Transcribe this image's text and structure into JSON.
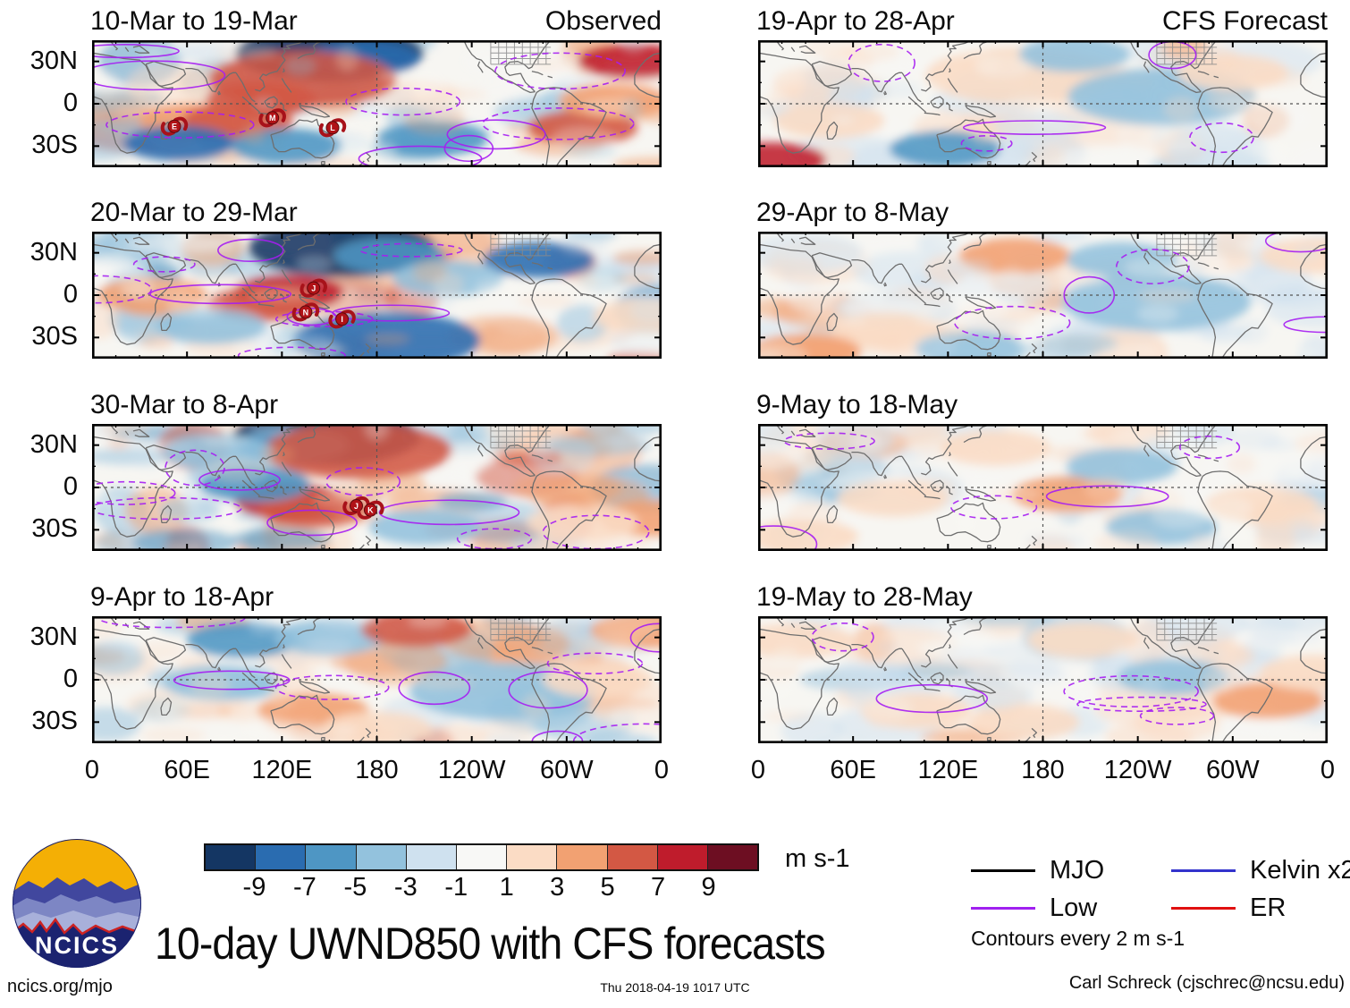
{
  "chart_data": {
    "type": "heatmap",
    "title": "10-day UWND850 with CFS forecasts",
    "units_label": "m s-1",
    "lon_range": [
      0,
      360
    ],
    "lat_range": [
      -45,
      45
    ],
    "x_tick_labels": [
      "0",
      "60E",
      "120E",
      "180",
      "120W",
      "60W",
      "0"
    ],
    "y_tick_labels": [
      "30N",
      "0",
      "30S"
    ],
    "colorbar": {
      "tick_labels": [
        "-9",
        "-7",
        "-5",
        "-3",
        "-1",
        "1",
        "3",
        "5",
        "7",
        "9"
      ],
      "colors": [
        "#143663",
        "#2a6cb0",
        "#4e96c4",
        "#93c2dd",
        "#cfe1ef",
        "#f8f8f6",
        "#fbdcc5",
        "#f2a172",
        "#d35844",
        "#bf1c2c",
        "#6d0e22"
      ]
    },
    "legend": {
      "items": [
        {
          "label": "MJO",
          "color": "#000000"
        },
        {
          "label": "Low",
          "color": "#a020f0"
        },
        {
          "label": "Kelvin x2",
          "color": "#3333cc"
        },
        {
          "label": "ER",
          "color": "#e01010"
        }
      ],
      "note": "Contours every 2 m s-1"
    },
    "panels": [
      {
        "title": "10-Mar to 19-Mar",
        "corner_label": "Observed",
        "amplitude": 1.0,
        "features": [
          {
            "lon": 150,
            "lat": 36,
            "value": -9,
            "size": "large"
          },
          {
            "lon": 172,
            "lat": 32,
            "value": -7,
            "size": "medium"
          },
          {
            "lon": 133,
            "lat": 17,
            "value": 7,
            "size": "large"
          },
          {
            "lon": 107,
            "lat": 3,
            "value": 7,
            "size": "medium"
          },
          {
            "lon": 342,
            "lat": 30,
            "value": 9,
            "size": "medium"
          },
          {
            "lon": 310,
            "lat": -17,
            "value": 7,
            "size": "medium"
          },
          {
            "lon": 65,
            "lat": -12,
            "value": 5,
            "size": "medium"
          },
          {
            "lon": 92,
            "lat": -12,
            "value": 7,
            "size": "medium"
          },
          {
            "lon": 55,
            "lat": -28,
            "value": -7,
            "size": "medium"
          },
          {
            "lon": 123,
            "lat": -30,
            "value": -5,
            "size": "medium"
          },
          {
            "lon": 215,
            "lat": -25,
            "value": -5,
            "size": "medium"
          },
          {
            "lon": 330,
            "lat": 2,
            "value": 5,
            "size": "medium"
          }
        ],
        "cyclones": [
          {
            "letter": "E",
            "lon": 52,
            "lat": -16
          },
          {
            "letter": "M",
            "lon": 114,
            "lat": -10
          },
          {
            "letter": "L",
            "lon": 152,
            "lat": -17
          }
        ]
      },
      {
        "title": "20-Mar to 29-Mar",
        "corner_label": "",
        "amplitude": 1.0,
        "features": [
          {
            "lon": 158,
            "lat": 33,
            "value": -9,
            "size": "large"
          },
          {
            "lon": 188,
            "lat": 28,
            "value": -5,
            "size": "medium"
          },
          {
            "lon": 124,
            "lat": 2,
            "value": 9,
            "size": "medium"
          },
          {
            "lon": 108,
            "lat": -6,
            "value": 7,
            "size": "medium"
          },
          {
            "lon": 186,
            "lat": -32,
            "value": -7,
            "size": "large"
          },
          {
            "lon": 282,
            "lat": 25,
            "value": -7,
            "size": "medium"
          },
          {
            "lon": 38,
            "lat": 0,
            "value": 5,
            "size": "medium"
          },
          {
            "lon": 225,
            "lat": 12,
            "value": -3,
            "size": "medium"
          },
          {
            "lon": 352,
            "lat": -15,
            "value": 3,
            "size": "medium"
          },
          {
            "lon": 75,
            "lat": -22,
            "value": -3,
            "size": "medium"
          }
        ],
        "cyclones": [
          {
            "letter": "J",
            "lon": 140,
            "lat": 5
          },
          {
            "letter": "N",
            "lon": 135,
            "lat": -12
          },
          {
            "letter": "I",
            "lon": 158,
            "lat": -17
          }
        ]
      },
      {
        "title": "30-Mar to 8-Apr",
        "corner_label": "",
        "amplitude": 1.0,
        "features": [
          {
            "lon": 148,
            "lat": 36,
            "value": -9,
            "size": "large"
          },
          {
            "lon": 128,
            "lat": 30,
            "value": -5,
            "size": "medium"
          },
          {
            "lon": 168,
            "lat": 26,
            "value": 7,
            "size": "large"
          },
          {
            "lon": 125,
            "lat": -10,
            "value": 9,
            "size": "medium"
          },
          {
            "lon": 140,
            "lat": -16,
            "value": 7,
            "size": "medium"
          },
          {
            "lon": 103,
            "lat": 2,
            "value": -5,
            "size": "medium"
          },
          {
            "lon": 80,
            "lat": 25,
            "value": -3,
            "size": "medium"
          },
          {
            "lon": 355,
            "lat": -22,
            "value": 5,
            "size": "medium"
          },
          {
            "lon": 210,
            "lat": -28,
            "value": -3,
            "size": "medium"
          },
          {
            "lon": 310,
            "lat": -25,
            "value": 3,
            "size": "medium"
          }
        ],
        "cyclones": [
          {
            "letter": "J",
            "lon": 167,
            "lat": -13
          },
          {
            "letter": "K",
            "lon": 176,
            "lat": -16
          }
        ]
      },
      {
        "title": "9-Apr to 18-Apr",
        "corner_label": "",
        "amplitude": 0.85,
        "features": [
          {
            "lon": 95,
            "lat": 28,
            "value": -5,
            "size": "medium"
          },
          {
            "lon": 150,
            "lat": 30,
            "value": -3,
            "size": "medium"
          },
          {
            "lon": 205,
            "lat": 36,
            "value": 7,
            "size": "medium"
          },
          {
            "lon": 350,
            "lat": 35,
            "value": 5,
            "size": "medium"
          },
          {
            "lon": 80,
            "lat": -2,
            "value": -3,
            "size": "medium"
          },
          {
            "lon": 140,
            "lat": -22,
            "value": 5,
            "size": "medium"
          },
          {
            "lon": 260,
            "lat": -8,
            "value": -3,
            "size": "large"
          },
          {
            "lon": 320,
            "lat": 0,
            "value": 3,
            "size": "medium"
          },
          {
            "lon": 180,
            "lat": -35,
            "value": 3,
            "size": "medium"
          }
        ],
        "cyclones": []
      },
      {
        "title": "19-Apr to 28-Apr",
        "corner_label": "CFS Forecast",
        "amplitude": 0.55,
        "features": [
          {
            "lon": 165,
            "lat": 20,
            "value": 3,
            "size": "large"
          },
          {
            "lon": 255,
            "lat": 5,
            "value": -3,
            "size": "large"
          },
          {
            "lon": 45,
            "lat": -12,
            "value": 3,
            "size": "medium"
          },
          {
            "lon": 118,
            "lat": -32,
            "value": -5,
            "size": "medium"
          },
          {
            "lon": 8,
            "lat": -40,
            "value": 9,
            "size": "medium"
          },
          {
            "lon": 300,
            "lat": 22,
            "value": 3,
            "size": "medium"
          },
          {
            "lon": 200,
            "lat": 35,
            "value": -3,
            "size": "medium"
          }
        ],
        "cyclones": []
      },
      {
        "title": "29-Apr to 8-May",
        "corner_label": "",
        "amplitude": 0.55,
        "features": [
          {
            "lon": 162,
            "lat": 28,
            "value": 5,
            "size": "medium"
          },
          {
            "lon": 352,
            "lat": 28,
            "value": 3,
            "size": "medium"
          },
          {
            "lon": 82,
            "lat": -25,
            "value": 3,
            "size": "medium"
          },
          {
            "lon": 252,
            "lat": -5,
            "value": -3,
            "size": "large"
          },
          {
            "lon": 135,
            "lat": -38,
            "value": -3,
            "size": "medium"
          },
          {
            "lon": 30,
            "lat": -40,
            "value": 5,
            "size": "medium"
          },
          {
            "lon": 230,
            "lat": 25,
            "value": -3,
            "size": "medium"
          }
        ],
        "cyclones": []
      },
      {
        "title": "9-May to 18-May",
        "corner_label": "",
        "amplitude": 0.55,
        "features": [
          {
            "lon": 195,
            "lat": -5,
            "value": 5,
            "size": "medium"
          },
          {
            "lon": 150,
            "lat": 28,
            "value": 3,
            "size": "medium"
          },
          {
            "lon": 255,
            "lat": -28,
            "value": -3,
            "size": "medium"
          },
          {
            "lon": 85,
            "lat": -8,
            "value": 3,
            "size": "medium"
          },
          {
            "lon": 318,
            "lat": -12,
            "value": 3,
            "size": "medium"
          },
          {
            "lon": 28,
            "lat": -35,
            "value": 3,
            "size": "medium"
          },
          {
            "lon": 230,
            "lat": 15,
            "value": -3,
            "size": "medium"
          }
        ],
        "cyclones": []
      },
      {
        "title": "19-May to 28-May",
        "corner_label": "",
        "amplitude": 0.55,
        "features": [
          {
            "lon": 322,
            "lat": -15,
            "value": 5,
            "size": "medium"
          },
          {
            "lon": 205,
            "lat": 28,
            "value": 3,
            "size": "medium"
          },
          {
            "lon": 100,
            "lat": -22,
            "value": 3,
            "size": "medium"
          },
          {
            "lon": 262,
            "lat": 2,
            "value": -3,
            "size": "medium"
          },
          {
            "lon": 25,
            "lat": 28,
            "value": 3,
            "size": "medium"
          },
          {
            "lon": 168,
            "lat": -30,
            "value": 3,
            "size": "medium"
          },
          {
            "lon": 352,
            "lat": 5,
            "value": 3,
            "size": "medium"
          }
        ],
        "cyclones": []
      }
    ]
  },
  "logo": {
    "text": "NCICS"
  },
  "footer": {
    "left": "ncics.org/mjo",
    "center": "Thu 2018-04-19 1017 UTC",
    "right": "Carl Schreck (cjschrec@ncsu.edu)"
  }
}
